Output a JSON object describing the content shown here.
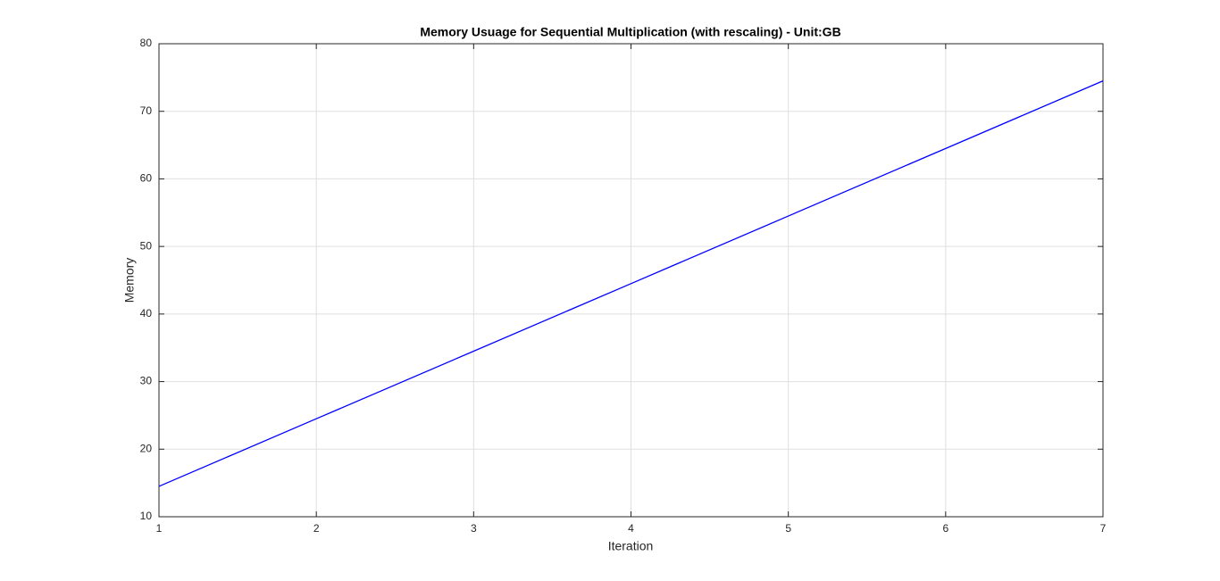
{
  "chart_data": {
    "type": "line",
    "title": "Memory Usuage for Sequential Multiplication (with rescaling) - Unit:GB",
    "x_label": "Iteration",
    "y_label": "Memory",
    "x": [
      1,
      2,
      3,
      4,
      5,
      6,
      7
    ],
    "series": [
      {
        "color": "#0000ff",
        "values": [
          14.5,
          24.5,
          34.5,
          44.5,
          54.5,
          64.5,
          74.5
        ]
      }
    ],
    "xlim": [
      1,
      7
    ],
    "xticks": [
      1,
      2,
      3,
      4,
      5,
      6,
      7
    ],
    "ylim": [
      10,
      80
    ],
    "yticks": [
      10,
      20,
      30,
      40,
      50,
      60,
      70,
      80
    ],
    "grid": true
  }
}
